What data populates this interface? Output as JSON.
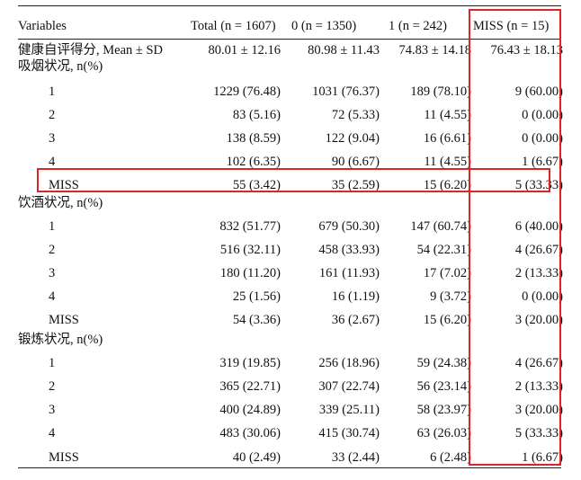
{
  "table": {
    "headers": [
      "Variables",
      "Total (n = 1607)",
      "0 (n = 1350)",
      "1 (n = 242)",
      "MISS (n = 15)"
    ],
    "rows": [
      {
        "label": "健康自评得分, Mean ± SD",
        "indent": false,
        "values": [
          "80.01 ± 12.16",
          "80.98 ± 11.43",
          "74.83 ± 14.18",
          "76.43 ± 18.13"
        ]
      },
      {
        "label": "吸烟状况, n(%)",
        "indent": false,
        "values": [
          "",
          "",
          "",
          ""
        ]
      },
      {
        "label": "1",
        "indent": true,
        "values": [
          "1229 (76.48)",
          "1031 (76.37)",
          "189 (78.10)",
          "9 (60.00)"
        ]
      },
      {
        "label": "2",
        "indent": true,
        "values": [
          "83 (5.16)",
          "72 (5.33)",
          "11 (4.55)",
          "0 (0.00)"
        ]
      },
      {
        "label": "3",
        "indent": true,
        "values": [
          "138 (8.59)",
          "122 (9.04)",
          "16 (6.61)",
          "0 (0.00)"
        ]
      },
      {
        "label": "4",
        "indent": true,
        "values": [
          "102 (6.35)",
          "90 (6.67)",
          "11 (4.55)",
          "1 (6.67)"
        ]
      },
      {
        "label": "MISS",
        "indent": true,
        "values": [
          "55 (3.42)",
          "35 (2.59)",
          "15 (6.20)",
          "5 (33.33)"
        ]
      },
      {
        "label": "饮酒状况, n(%)",
        "indent": false,
        "values": [
          "",
          "",
          "",
          ""
        ]
      },
      {
        "label": "1",
        "indent": true,
        "values": [
          "832 (51.77)",
          "679 (50.30)",
          "147 (60.74)",
          "6 (40.00)"
        ]
      },
      {
        "label": "2",
        "indent": true,
        "values": [
          "516 (32.11)",
          "458 (33.93)",
          "54 (22.31)",
          "4 (26.67)"
        ]
      },
      {
        "label": "3",
        "indent": true,
        "values": [
          "180 (11.20)",
          "161 (11.93)",
          "17 (7.02)",
          "2 (13.33)"
        ]
      },
      {
        "label": "4",
        "indent": true,
        "values": [
          "25 (1.56)",
          "16 (1.19)",
          "9 (3.72)",
          "0 (0.00)"
        ]
      },
      {
        "label": "MISS",
        "indent": true,
        "values": [
          "54 (3.36)",
          "36 (2.67)",
          "15 (6.20)",
          "3 (20.00)"
        ]
      },
      {
        "label": "锻炼状况, n(%)",
        "indent": false,
        "values": [
          "",
          "",
          "",
          ""
        ]
      },
      {
        "label": "1",
        "indent": true,
        "values": [
          "319 (19.85)",
          "256 (18.96)",
          "59 (24.38)",
          "4 (26.67)"
        ]
      },
      {
        "label": "2",
        "indent": true,
        "values": [
          "365 (22.71)",
          "307 (22.74)",
          "56 (23.14)",
          "2 (13.33)"
        ]
      },
      {
        "label": "3",
        "indent": true,
        "values": [
          "400 (24.89)",
          "339 (25.11)",
          "58 (23.97)",
          "3 (20.00)"
        ]
      },
      {
        "label": "4",
        "indent": true,
        "values": [
          "483 (30.06)",
          "415 (30.74)",
          "63 (26.03)",
          "5 (33.33)"
        ]
      },
      {
        "label": "MISS",
        "indent": true,
        "values": [
          "40 (2.49)",
          "33 (2.44)",
          "6 (2.48)",
          "1 (6.67)"
        ]
      }
    ]
  },
  "highlight": {
    "color": "#e02424"
  }
}
